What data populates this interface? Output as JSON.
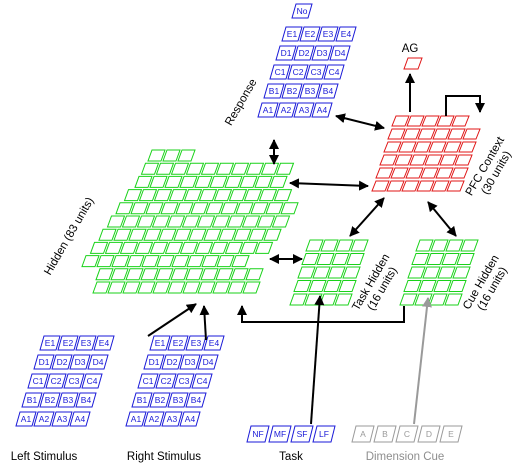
{
  "colors": {
    "blue": "#1a1ad8",
    "green": "#19d219",
    "red": "#e01616",
    "gray": "#9a9a9a",
    "arrow": "#000000"
  },
  "labels": {
    "ag": "AG",
    "response": "Response",
    "pfc_line1": "PFC Context",
    "pfc_line2": "(30 units)",
    "hidden": "Hidden (83 units)",
    "task_hidden_line1": "Task Hidden",
    "task_hidden_line2": "(16 units)",
    "cue_hidden_line1": "Cue Hidden",
    "cue_hidden_line2": "(16 units)",
    "left_stimulus": "Left Stimulus",
    "right_stimulus": "Right Stimulus",
    "task": "Task",
    "dimension_cue": "Dimension Cue"
  },
  "response_grid": {
    "top": [
      "No"
    ],
    "rows": [
      [
        "E1",
        "E2",
        "E3",
        "E4"
      ],
      [
        "D1",
        "D2",
        "D3",
        "D4"
      ],
      [
        "C1",
        "C2",
        "C3",
        "C4"
      ],
      [
        "B1",
        "B2",
        "B3",
        "B4"
      ],
      [
        "A1",
        "A2",
        "A3",
        "A4"
      ]
    ]
  },
  "stimulus_grid": {
    "rows": [
      [
        "E1",
        "E2",
        "E3",
        "E4"
      ],
      [
        "D1",
        "D2",
        "D3",
        "D4"
      ],
      [
        "C1",
        "C2",
        "C3",
        "C4"
      ],
      [
        "B1",
        "B2",
        "B3",
        "B4"
      ],
      [
        "A1",
        "A2",
        "A3",
        "A4"
      ]
    ]
  },
  "task_units": [
    "NF",
    "MF",
    "SF",
    "LF"
  ],
  "dimension_cue_units": [
    "A",
    "B",
    "C",
    "D",
    "E"
  ]
}
